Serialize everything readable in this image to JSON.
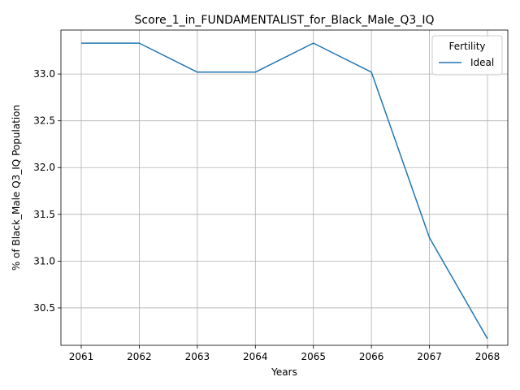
{
  "chart_data": {
    "type": "line",
    "title": "Score_1_in_FUNDAMENTALIST_for_Black_Male_Q3_IQ",
    "xlabel": "Years",
    "ylabel": "% of Black_Male Q3_IQ Population",
    "x": [
      2061,
      2062,
      2063,
      2064,
      2065,
      2066,
      2067,
      2068
    ],
    "xlim": [
      2060.65,
      2068.35
    ],
    "ylim": [
      30.1,
      33.47
    ],
    "yticks": [
      30.5,
      31.0,
      31.5,
      32.0,
      32.5,
      33.0
    ],
    "ytick_labels": [
      "30.5",
      "31.0",
      "31.5",
      "32.0",
      "32.5",
      "33.0"
    ],
    "xtick_labels": [
      "2061",
      "2062",
      "2063",
      "2064",
      "2065",
      "2066",
      "2067",
      "2068"
    ],
    "grid": true,
    "legend": {
      "title": "Fertility",
      "placement": "top-right"
    },
    "series": [
      {
        "name": "Ideal",
        "color": "#1f77b4",
        "values": [
          33.33,
          33.33,
          33.02,
          33.02,
          33.33,
          33.02,
          31.25,
          30.17
        ]
      }
    ]
  }
}
